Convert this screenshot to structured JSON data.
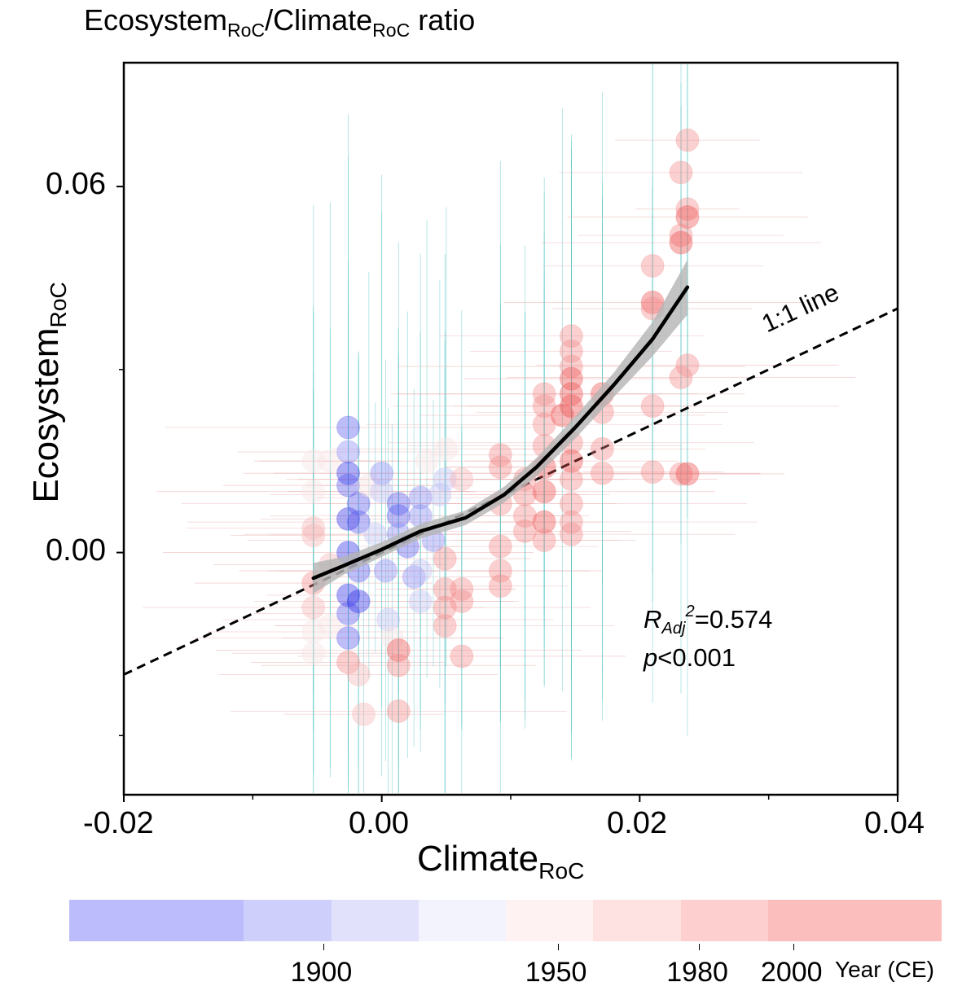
{
  "chart_data": {
    "type": "scatter",
    "title": "Ecosystem/Climate ratio",
    "title_parts": {
      "a": "Ecosystem",
      "a_sub": "RoC",
      "sep": "/",
      "b": "Climate",
      "b_sub": "RoC",
      "rest": " ratio"
    },
    "xlabel": {
      "main": "Climate",
      "sub": "RoC"
    },
    "ylabel": {
      "main": "Ecosystem",
      "sub": "RoC"
    },
    "xlim": [
      -0.02,
      0.04
    ],
    "ylim": [
      -0.0397,
      0.0803
    ],
    "x_ticks": [
      {
        "value": -0.02,
        "label": "-0.02"
      },
      {
        "value": 0.0,
        "label": "0.00"
      },
      {
        "value": 0.02,
        "label": "0.02"
      },
      {
        "value": 0.04,
        "label": "0.04"
      }
    ],
    "x_minor_ticks": [
      -0.01,
      0.01,
      0.03
    ],
    "y_ticks": [
      {
        "value": 0.06,
        "label": "0.06"
      },
      {
        "value": 0.0,
        "label": "0.00"
      }
    ],
    "y_minor_ticks": [
      0.03,
      -0.03
    ],
    "grid": false,
    "reference_line": {
      "label": "1:1 line",
      "slope": 1,
      "intercept": 0,
      "style": "dashed"
    },
    "fit": {
      "type": "loess",
      "x": [
        -0.0053,
        -0.003,
        0.0,
        0.003,
        0.0065,
        0.0095,
        0.012,
        0.015,
        0.018,
        0.021,
        0.0237
      ],
      "y": [
        -0.0042,
        -0.0022,
        0.0005,
        0.0035,
        0.0057,
        0.0095,
        0.014,
        0.0205,
        0.0275,
        0.035,
        0.0435
      ],
      "ci_halfwidth": [
        0.0025,
        0.0015,
        0.0012,
        0.0012,
        0.0012,
        0.0013,
        0.0015,
        0.0018,
        0.002,
        0.0028,
        0.0045
      ]
    },
    "stats": {
      "r2_label": "R",
      "r2_sub": "Adj",
      "r2_sup": "2",
      "r2_value": "=0.574",
      "p_label": "p",
      "p_value": "<0.001"
    },
    "colorbar": {
      "title": "Year (CE)",
      "segments": [
        "#bcbcfc",
        "#cfcffc",
        "#e1e1fc",
        "#f3f3fd",
        "#fff2f2",
        "#fee1e1",
        "#fdcfcf",
        "#fcbdbd"
      ],
      "tick_labels": [
        {
          "label": "1900",
          "pos": 0.291
        },
        {
          "label": "1950",
          "pos": 0.56
        },
        {
          "label": "1980",
          "pos": 0.722
        },
        {
          "label": "2000",
          "pos": 0.83
        }
      ]
    },
    "point_colors": [
      "#2f2fe8",
      "#5a5aee",
      "#8a8af2",
      "#c0c0f6",
      "#f8e4e4",
      "#f6b3b3",
      "#f28a8a",
      "#ee5050"
    ],
    "series": [
      {
        "name": "points",
        "points": [
          {
            "x": -0.0053,
            "y": 0.004,
            "c": 5
          },
          {
            "x": -0.0053,
            "y": 0.0028,
            "c": 5
          },
          {
            "x": -0.0053,
            "y": -0.005,
            "c": 6
          },
          {
            "x": -0.0053,
            "y": -0.009,
            "c": 5
          },
          {
            "x": -0.0053,
            "y": -0.013,
            "c": 4
          },
          {
            "x": -0.0053,
            "y": 0.01,
            "c": 4
          },
          {
            "x": -0.0053,
            "y": 0.015,
            "c": 4
          },
          {
            "x": -0.0053,
            "y": -0.0165,
            "c": 4
          },
          {
            "x": -0.004,
            "y": 0.015,
            "c": 4
          },
          {
            "x": -0.004,
            "y": -0.002,
            "c": 5
          },
          {
            "x": -0.004,
            "y": -0.012,
            "c": 4
          },
          {
            "x": -0.0026,
            "y": 0.0205,
            "c": 1
          },
          {
            "x": -0.0026,
            "y": 0.0165,
            "c": 2
          },
          {
            "x": -0.0026,
            "y": 0.013,
            "c": 0
          },
          {
            "x": -0.0026,
            "y": 0.011,
            "c": 1
          },
          {
            "x": -0.0026,
            "y": 0.0055,
            "c": 0
          },
          {
            "x": -0.0026,
            "y": 0.0,
            "c": 0
          },
          {
            "x": -0.0026,
            "y": -0.007,
            "c": 0
          },
          {
            "x": -0.0026,
            "y": -0.01,
            "c": 1
          },
          {
            "x": -0.0026,
            "y": -0.014,
            "c": 1
          },
          {
            "x": -0.0026,
            "y": -0.018,
            "c": 6
          },
          {
            "x": -0.0018,
            "y": 0.008,
            "c": 1
          },
          {
            "x": -0.0018,
            "y": 0.005,
            "c": 1
          },
          {
            "x": -0.0018,
            "y": -0.003,
            "c": 1
          },
          {
            "x": -0.0018,
            "y": -0.008,
            "c": 0
          },
          {
            "x": -0.0018,
            "y": -0.02,
            "c": 5
          },
          {
            "x": -0.0014,
            "y": -0.0265,
            "c": 5
          },
          {
            "x": -0.001,
            "y": 0.011,
            "c": 4
          },
          {
            "x": -0.0005,
            "y": 0.003,
            "c": 3
          },
          {
            "x": 0.0,
            "y": 0.013,
            "c": 2
          },
          {
            "x": 0.0,
            "y": 0.01,
            "c": 3
          },
          {
            "x": 0.0003,
            "y": -0.003,
            "c": 2
          },
          {
            "x": 0.0005,
            "y": -0.011,
            "c": 3
          },
          {
            "x": 0.0008,
            "y": -0.014,
            "c": 4
          },
          {
            "x": 0.0013,
            "y": 0.008,
            "c": 1
          },
          {
            "x": 0.0013,
            "y": 0.006,
            "c": 1
          },
          {
            "x": 0.0013,
            "y": 0.003,
            "c": 2
          },
          {
            "x": 0.0013,
            "y": -0.016,
            "c": 7
          },
          {
            "x": 0.0013,
            "y": -0.026,
            "c": 6
          },
          {
            "x": 0.0013,
            "y": -0.0185,
            "c": 6
          },
          {
            "x": 0.002,
            "y": 0.001,
            "c": 1
          },
          {
            "x": 0.0025,
            "y": -0.004,
            "c": 2
          },
          {
            "x": 0.003,
            "y": 0.009,
            "c": 2
          },
          {
            "x": 0.003,
            "y": 0.006,
            "c": 2
          },
          {
            "x": 0.003,
            "y": -0.003,
            "c": 3
          },
          {
            "x": 0.003,
            "y": -0.008,
            "c": 3
          },
          {
            "x": 0.0035,
            "y": 0.015,
            "c": 4
          },
          {
            "x": 0.004,
            "y": 0.002,
            "c": 2
          },
          {
            "x": 0.0045,
            "y": 0.0095,
            "c": 3
          },
          {
            "x": 0.005,
            "y": 0.017,
            "c": 4
          },
          {
            "x": 0.0049,
            "y": 0.012,
            "c": 3
          },
          {
            "x": 0.0049,
            "y": -0.001,
            "c": 6
          },
          {
            "x": 0.0049,
            "y": -0.006,
            "c": 6
          },
          {
            "x": 0.0049,
            "y": -0.009,
            "c": 6
          },
          {
            "x": 0.0049,
            "y": -0.012,
            "c": 6
          },
          {
            "x": 0.0062,
            "y": 0.012,
            "c": 5
          },
          {
            "x": 0.0062,
            "y": -0.006,
            "c": 6
          },
          {
            "x": 0.0062,
            "y": -0.008,
            "c": 6
          },
          {
            "x": 0.0062,
            "y": -0.017,
            "c": 6
          },
          {
            "x": 0.0092,
            "y": 0.016,
            "c": 6
          },
          {
            "x": 0.0092,
            "y": 0.014,
            "c": 6
          },
          {
            "x": 0.0092,
            "y": 0.008,
            "c": 6
          },
          {
            "x": 0.0092,
            "y": 0.001,
            "c": 6
          },
          {
            "x": 0.0092,
            "y": -0.003,
            "c": 6
          },
          {
            "x": 0.0092,
            "y": -0.0055,
            "c": 6
          },
          {
            "x": 0.0111,
            "y": 0.012,
            "c": 6
          },
          {
            "x": 0.0111,
            "y": 0.0095,
            "c": 6
          },
          {
            "x": 0.0111,
            "y": 0.006,
            "c": 6
          },
          {
            "x": 0.0111,
            "y": 0.0035,
            "c": 6
          },
          {
            "x": 0.0126,
            "y": 0.026,
            "c": 6
          },
          {
            "x": 0.0126,
            "y": 0.024,
            "c": 6
          },
          {
            "x": 0.0126,
            "y": 0.021,
            "c": 6
          },
          {
            "x": 0.0126,
            "y": 0.0175,
            "c": 6
          },
          {
            "x": 0.0126,
            "y": 0.014,
            "c": 7
          },
          {
            "x": 0.0126,
            "y": 0.01,
            "c": 7
          },
          {
            "x": 0.0126,
            "y": 0.005,
            "c": 7
          },
          {
            "x": 0.0126,
            "y": 0.002,
            "c": 6
          },
          {
            "x": 0.0147,
            "y": 0.0355,
            "c": 6
          },
          {
            "x": 0.0147,
            "y": 0.033,
            "c": 6
          },
          {
            "x": 0.0147,
            "y": 0.0305,
            "c": 6
          },
          {
            "x": 0.0147,
            "y": 0.0285,
            "c": 7
          },
          {
            "x": 0.0147,
            "y": 0.026,
            "c": 7
          },
          {
            "x": 0.0147,
            "y": 0.024,
            "c": 7
          },
          {
            "x": 0.014,
            "y": 0.0225,
            "c": 7
          },
          {
            "x": 0.0147,
            "y": 0.018,
            "c": 6
          },
          {
            "x": 0.0147,
            "y": 0.015,
            "c": 7
          },
          {
            "x": 0.0147,
            "y": 0.012,
            "c": 6
          },
          {
            "x": 0.0147,
            "y": 0.008,
            "c": 6
          },
          {
            "x": 0.0147,
            "y": 0.005,
            "c": 6
          },
          {
            "x": 0.0147,
            "y": 0.003,
            "c": 6
          },
          {
            "x": 0.0171,
            "y": 0.026,
            "c": 7
          },
          {
            "x": 0.0171,
            "y": 0.023,
            "c": 6
          },
          {
            "x": 0.0171,
            "y": 0.017,
            "c": 6
          },
          {
            "x": 0.0171,
            "y": 0.013,
            "c": 6
          },
          {
            "x": 0.021,
            "y": 0.047,
            "c": 6
          },
          {
            "x": 0.021,
            "y": 0.041,
            "c": 7
          },
          {
            "x": 0.021,
            "y": 0.04,
            "c": 6
          },
          {
            "x": 0.021,
            "y": 0.024,
            "c": 6
          },
          {
            "x": 0.021,
            "y": 0.0132,
            "c": 6
          },
          {
            "x": 0.0237,
            "y": 0.0676,
            "c": 6
          },
          {
            "x": 0.0232,
            "y": 0.0623,
            "c": 6
          },
          {
            "x": 0.0237,
            "y": 0.0563,
            "c": 6
          },
          {
            "x": 0.0237,
            "y": 0.055,
            "c": 7
          },
          {
            "x": 0.0232,
            "y": 0.052,
            "c": 6
          },
          {
            "x": 0.0232,
            "y": 0.0508,
            "c": 7
          },
          {
            "x": 0.0237,
            "y": 0.0307,
            "c": 6
          },
          {
            "x": 0.0232,
            "y": 0.0287,
            "c": 6
          },
          {
            "x": 0.0232,
            "y": 0.0129,
            "c": 6
          },
          {
            "x": 0.0237,
            "y": 0.0129,
            "c": 7
          }
        ]
      }
    ]
  }
}
